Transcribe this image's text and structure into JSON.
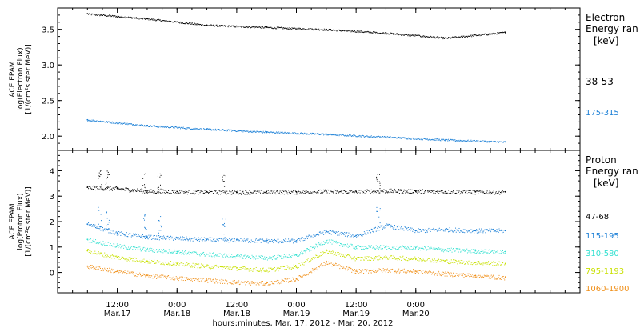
{
  "chart_data": [
    {
      "type": "scatter",
      "ylabel": "ACE EPAM",
      "ylabel2": "log(Electron Flux)",
      "ylabel3": "[1/(cm²s ster MeV)]",
      "ylim": [
        1.8,
        3.8
      ],
      "yticks": [
        2.0,
        2.5,
        3.0,
        3.5
      ],
      "ytick_labels": [
        "2.0",
        "2.5",
        "3.0",
        "3.5"
      ],
      "legend_title": "Electron",
      "legend_subtitle": "Energy ran",
      "legend_unit": "[keV]",
      "series": [
        {
          "name": "38-53",
          "color": "#000000",
          "x": [
            0,
            12,
            24,
            36,
            48,
            60,
            72,
            84
          ],
          "y": [
            3.72,
            3.65,
            3.56,
            3.53,
            3.5,
            3.45,
            3.38,
            3.46
          ]
        },
        {
          "name": "175-315",
          "color": "#1a7fd6",
          "x": [
            0,
            12,
            24,
            36,
            48,
            60,
            72,
            84
          ],
          "y": [
            2.23,
            2.15,
            2.1,
            2.06,
            2.03,
            1.99,
            1.95,
            1.92
          ]
        }
      ]
    },
    {
      "type": "scatter",
      "ylabel": "ACE EPAM",
      "ylabel2": "log(Proton Flux)",
      "ylabel3": "[1/(cm²s ster MeV)]",
      "ylim": [
        -0.8,
        4.8
      ],
      "yticks": [
        0,
        1,
        2,
        3,
        4
      ],
      "ytick_labels": [
        "0",
        "1",
        "2",
        "3",
        "4"
      ],
      "legend_title": "Proton",
      "legend_subtitle": "Energy ran",
      "legend_unit": "[keV]",
      "series": [
        {
          "name": "47-68",
          "color": "#000000",
          "x": [
            0,
            6,
            12,
            18,
            24,
            30,
            36,
            42,
            48,
            54,
            60,
            66,
            72,
            78,
            84
          ],
          "y": [
            3.35,
            3.3,
            3.2,
            3.18,
            3.17,
            3.16,
            3.18,
            3.17,
            3.19,
            3.18,
            3.22,
            3.2,
            3.18,
            3.17,
            3.17
          ]
        },
        {
          "name": "115-195",
          "color": "#1a7fd6",
          "x": [
            0,
            6,
            12,
            18,
            24,
            30,
            36,
            42,
            48,
            54,
            60,
            66,
            72,
            78,
            84
          ],
          "y": [
            1.9,
            1.55,
            1.4,
            1.35,
            1.3,
            1.28,
            1.25,
            1.25,
            1.62,
            1.45,
            1.85,
            1.65,
            1.7,
            1.65,
            1.65
          ]
        },
        {
          "name": "310-580",
          "color": "#33e0d0",
          "x": [
            0,
            6,
            12,
            18,
            24,
            30,
            36,
            42,
            48,
            54,
            60,
            66,
            72,
            78,
            84
          ],
          "y": [
            1.3,
            1.05,
            0.9,
            0.82,
            0.72,
            0.65,
            0.58,
            0.68,
            1.25,
            1.0,
            1.0,
            0.98,
            0.9,
            0.85,
            0.82
          ]
        },
        {
          "name": "795-1193",
          "color": "#c8e000",
          "x": [
            0,
            6,
            12,
            18,
            24,
            30,
            36,
            42,
            48,
            54,
            60,
            66,
            72,
            78,
            84
          ],
          "y": [
            0.85,
            0.6,
            0.45,
            0.35,
            0.25,
            0.18,
            0.1,
            0.25,
            0.85,
            0.55,
            0.6,
            0.55,
            0.45,
            0.4,
            0.35
          ]
        },
        {
          "name": "1060-1900",
          "color": "#f0901a",
          "x": [
            0,
            6,
            12,
            18,
            24,
            30,
            36,
            42,
            48,
            54,
            60,
            66,
            72,
            78,
            84
          ],
          "y": [
            0.25,
            0.05,
            -0.12,
            -0.22,
            -0.3,
            -0.38,
            -0.42,
            -0.25,
            0.4,
            0.05,
            0.1,
            0.05,
            -0.05,
            -0.12,
            -0.2
          ]
        }
      ]
    }
  ],
  "xaxis": {
    "xlim": [
      -6,
      99
    ],
    "ticks": [
      {
        "x": 6,
        "time": "12:00",
        "date": "Mar.17"
      },
      {
        "x": 18,
        "time": "0:00",
        "date": "Mar.18"
      },
      {
        "x": 30,
        "time": "12:00",
        "date": "Mar.18"
      },
      {
        "x": 42,
        "time": "0:00",
        "date": "Mar.19"
      },
      {
        "x": 54,
        "time": "12:00",
        "date": "Mar.19"
      },
      {
        "x": 66,
        "time": "0:00",
        "date": "Mar.20"
      }
    ],
    "xlabel": "hours:minutes, Mar. 17, 2012 - Mar. 20, 2012"
  }
}
